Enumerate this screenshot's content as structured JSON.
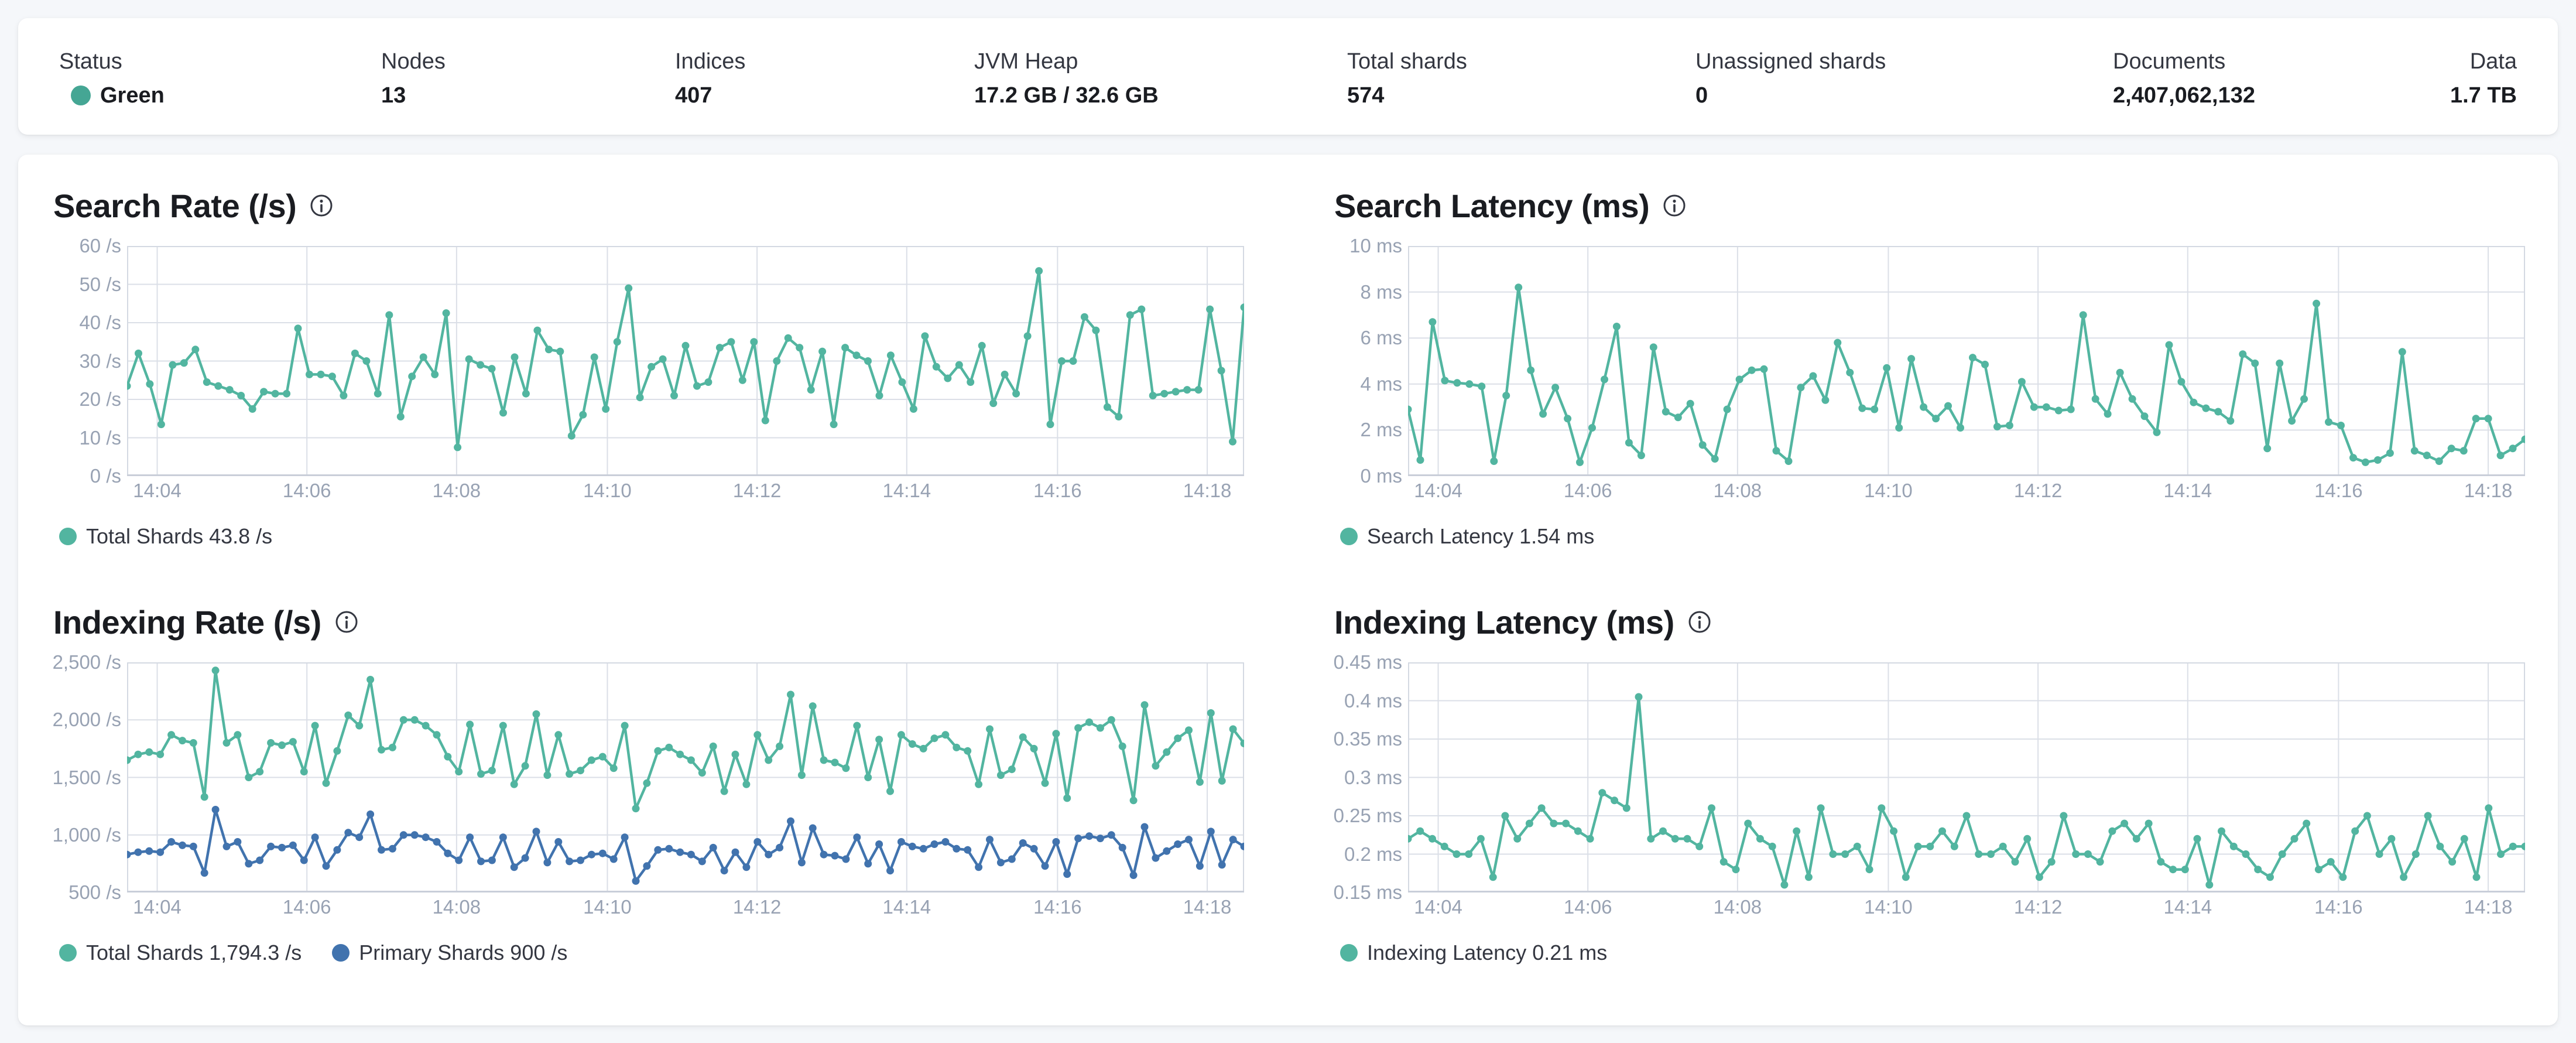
{
  "status_bar": {
    "items": [
      {
        "label": "Status",
        "value": "Green",
        "dot_color": "#45a694"
      },
      {
        "label": "Nodes",
        "value": "13"
      },
      {
        "label": "Indices",
        "value": "407"
      },
      {
        "label": "JVM Heap",
        "value": "17.2 GB / 32.6 GB"
      },
      {
        "label": "Total shards",
        "value": "574"
      },
      {
        "label": "Unassigned shards",
        "value": "0"
      },
      {
        "label": "Documents",
        "value": "2,407,062,132"
      },
      {
        "label": "Data",
        "value": "1.7 TB"
      }
    ]
  },
  "colors": {
    "teal": "#52b5a0",
    "blue": "#4173ae",
    "grid": "#dbdfe7",
    "border": "#d4d9e2",
    "axis_line": "#c9ced9",
    "tick_text": "#98a2b3"
  },
  "chart_data": [
    {
      "type": "line",
      "title": "Search Rate (/s)",
      "ylim": [
        0,
        60
      ],
      "y_ticks": [
        {
          "v": 60,
          "label": "60 /s"
        },
        {
          "v": 50,
          "label": "50 /s"
        },
        {
          "v": 40,
          "label": "40 /s"
        },
        {
          "v": 30,
          "label": "30 /s"
        },
        {
          "v": 20,
          "label": "20 /s"
        },
        {
          "v": 10,
          "label": "10 /s"
        },
        {
          "v": 0,
          "label": "0 /s"
        }
      ],
      "x_ticks": [
        {
          "f": 0.027,
          "label": "14:04"
        },
        {
          "f": 0.161,
          "label": "14:06"
        },
        {
          "f": 0.295,
          "label": "14:08"
        },
        {
          "f": 0.43,
          "label": "14:10"
        },
        {
          "f": 0.564,
          "label": "14:12"
        },
        {
          "f": 0.698,
          "label": "14:14"
        },
        {
          "f": 0.833,
          "label": "14:16"
        },
        {
          "f": 0.967,
          "label": "14:18"
        }
      ],
      "series": [
        {
          "name": "Total Shards",
          "legend": "Total Shards 43.8 /s",
          "color": "#52b5a0",
          "values": [
            23.5,
            32,
            24,
            13.5,
            29,
            29.5,
            33,
            24.5,
            23.5,
            22.5,
            21,
            17.5,
            22,
            21.5,
            21.5,
            38.5,
            26.5,
            26.5,
            26,
            21,
            32,
            30,
            21.5,
            42,
            15.5,
            26,
            31,
            26.5,
            42.5,
            7.5,
            30.5,
            29,
            28,
            16.5,
            31,
            21.5,
            38,
            33,
            32.5,
            10.5,
            16,
            31,
            17.5,
            35,
            49,
            20.5,
            28.5,
            30.5,
            21,
            34,
            23.5,
            24.5,
            33.5,
            35,
            25,
            35,
            14.5,
            30,
            36,
            33.5,
            22.5,
            32.5,
            13.5,
            33.5,
            31.5,
            30,
            21,
            31.5,
            24.5,
            17.5,
            36.5,
            28.5,
            25.5,
            29,
            24.5,
            34,
            19,
            26.5,
            21.5,
            36.5,
            53.5,
            13.5,
            30,
            30,
            41.5,
            38,
            18,
            15.5,
            42,
            43.5,
            21,
            21.5,
            22,
            22.5,
            22.5,
            43.5,
            27.5,
            9,
            44
          ]
        }
      ]
    },
    {
      "type": "line",
      "title": "Search Latency (ms)",
      "ylim": [
        0,
        10
      ],
      "y_ticks": [
        {
          "v": 10,
          "label": "10 ms"
        },
        {
          "v": 8,
          "label": "8 ms"
        },
        {
          "v": 6,
          "label": "6 ms"
        },
        {
          "v": 4,
          "label": "4 ms"
        },
        {
          "v": 2,
          "label": "2 ms"
        },
        {
          "v": 0,
          "label": "0 ms"
        }
      ],
      "x_ticks": [
        {
          "f": 0.027,
          "label": "14:04"
        },
        {
          "f": 0.161,
          "label": "14:06"
        },
        {
          "f": 0.295,
          "label": "14:08"
        },
        {
          "f": 0.43,
          "label": "14:10"
        },
        {
          "f": 0.564,
          "label": "14:12"
        },
        {
          "f": 0.698,
          "label": "14:14"
        },
        {
          "f": 0.833,
          "label": "14:16"
        },
        {
          "f": 0.967,
          "label": "14:18"
        }
      ],
      "series": [
        {
          "name": "Search Latency",
          "legend": "Search Latency 1.54 ms",
          "color": "#52b5a0",
          "values": [
            2.9,
            0.7,
            6.7,
            4.15,
            4.05,
            4.0,
            3.9,
            0.65,
            3.5,
            8.2,
            4.6,
            2.7,
            3.85,
            2.5,
            0.6,
            2.1,
            4.2,
            6.5,
            1.45,
            0.9,
            5.6,
            2.8,
            2.55,
            3.15,
            1.35,
            0.75,
            2.9,
            4.2,
            4.6,
            4.65,
            1.1,
            0.65,
            3.85,
            4.35,
            3.3,
            5.8,
            4.5,
            2.95,
            2.9,
            4.7,
            2.1,
            5.1,
            3.0,
            2.5,
            3.05,
            2.1,
            5.15,
            4.85,
            2.15,
            2.2,
            4.1,
            3.0,
            3.0,
            2.85,
            2.9,
            7.0,
            3.35,
            2.7,
            4.5,
            3.35,
            2.6,
            1.9,
            5.7,
            4.1,
            3.2,
            2.95,
            2.8,
            2.4,
            5.3,
            4.9,
            1.2,
            4.9,
            2.4,
            3.35,
            7.5,
            2.35,
            2.2,
            0.8,
            0.6,
            0.7,
            1.0,
            5.4,
            1.1,
            0.9,
            0.65,
            1.2,
            1.1,
            2.5,
            2.5,
            0.9,
            1.2,
            1.6
          ]
        }
      ]
    },
    {
      "type": "line",
      "title": "Indexing Rate (/s)",
      "ylim": [
        500,
        2500
      ],
      "y_ticks": [
        {
          "v": 2500,
          "label": "2,500 /s"
        },
        {
          "v": 2000,
          "label": "2,000 /s"
        },
        {
          "v": 1500,
          "label": "1,500 /s"
        },
        {
          "v": 1000,
          "label": "1,000 /s"
        },
        {
          "v": 500,
          "label": "500 /s"
        }
      ],
      "x_ticks": [
        {
          "f": 0.027,
          "label": "14:04"
        },
        {
          "f": 0.161,
          "label": "14:06"
        },
        {
          "f": 0.295,
          "label": "14:08"
        },
        {
          "f": 0.43,
          "label": "14:10"
        },
        {
          "f": 0.564,
          "label": "14:12"
        },
        {
          "f": 0.698,
          "label": "14:14"
        },
        {
          "f": 0.833,
          "label": "14:16"
        },
        {
          "f": 0.967,
          "label": "14:18"
        }
      ],
      "series": [
        {
          "name": "Total Shards",
          "legend": "Total Shards 1,794.3 /s",
          "color": "#52b5a0",
          "values": [
            1650,
            1700,
            1720,
            1700,
            1870,
            1820,
            1800,
            1330,
            2430,
            1800,
            1870,
            1500,
            1550,
            1800,
            1780,
            1810,
            1550,
            1950,
            1450,
            1730,
            2040,
            1950,
            2350,
            1740,
            1760,
            2000,
            2000,
            1950,
            1870,
            1680,
            1550,
            1960,
            1530,
            1560,
            1950,
            1440,
            1600,
            2050,
            1520,
            1870,
            1530,
            1560,
            1650,
            1680,
            1580,
            1950,
            1230,
            1450,
            1730,
            1760,
            1700,
            1650,
            1540,
            1770,
            1380,
            1700,
            1440,
            1870,
            1650,
            1770,
            2220,
            1520,
            2120,
            1650,
            1630,
            1580,
            1950,
            1500,
            1830,
            1380,
            1870,
            1790,
            1750,
            1840,
            1870,
            1760,
            1730,
            1440,
            1920,
            1520,
            1570,
            1850,
            1750,
            1450,
            1880,
            1320,
            1930,
            1980,
            1930,
            2000,
            1770,
            1300,
            2130,
            1600,
            1720,
            1840,
            1910,
            1460,
            2060,
            1470,
            1920,
            1795
          ]
        },
        {
          "name": "Primary Shards",
          "legend": "Primary Shards 900 /s",
          "color": "#4173ae",
          "values": [
            830,
            850,
            860,
            850,
            940,
            910,
            900,
            670,
            1220,
            900,
            940,
            750,
            780,
            900,
            890,
            910,
            780,
            980,
            730,
            870,
            1020,
            980,
            1180,
            870,
            880,
            1000,
            1000,
            980,
            940,
            840,
            780,
            980,
            770,
            780,
            980,
            720,
            800,
            1030,
            760,
            940,
            770,
            780,
            830,
            840,
            790,
            980,
            600,
            730,
            870,
            880,
            850,
            830,
            770,
            890,
            690,
            850,
            720,
            940,
            830,
            890,
            1120,
            760,
            1060,
            830,
            820,
            790,
            980,
            750,
            920,
            690,
            940,
            900,
            880,
            920,
            940,
            880,
            870,
            720,
            960,
            760,
            790,
            930,
            880,
            730,
            940,
            660,
            970,
            990,
            970,
            1000,
            890,
            650,
            1070,
            800,
            860,
            920,
            960,
            730,
            1030,
            740,
            960,
            900
          ]
        }
      ]
    },
    {
      "type": "line",
      "title": "Indexing Latency (ms)",
      "ylim": [
        0.15,
        0.45
      ],
      "y_ticks": [
        {
          "v": 0.45,
          "label": "0.45 ms"
        },
        {
          "v": 0.4,
          "label": "0.4 ms"
        },
        {
          "v": 0.35,
          "label": "0.35 ms"
        },
        {
          "v": 0.3,
          "label": "0.3 ms"
        },
        {
          "v": 0.25,
          "label": "0.25 ms"
        },
        {
          "v": 0.2,
          "label": "0.2 ms"
        },
        {
          "v": 0.15,
          "label": "0.15 ms"
        }
      ],
      "x_ticks": [
        {
          "f": 0.027,
          "label": "14:04"
        },
        {
          "f": 0.161,
          "label": "14:06"
        },
        {
          "f": 0.295,
          "label": "14:08"
        },
        {
          "f": 0.43,
          "label": "14:10"
        },
        {
          "f": 0.564,
          "label": "14:12"
        },
        {
          "f": 0.698,
          "label": "14:14"
        },
        {
          "f": 0.833,
          "label": "14:16"
        },
        {
          "f": 0.967,
          "label": "14:18"
        }
      ],
      "series": [
        {
          "name": "Indexing Latency",
          "legend": "Indexing Latency 0.21 ms",
          "color": "#52b5a0",
          "values": [
            0.22,
            0.23,
            0.22,
            0.21,
            0.2,
            0.2,
            0.22,
            0.17,
            0.25,
            0.22,
            0.24,
            0.26,
            0.24,
            0.24,
            0.23,
            0.22,
            0.28,
            0.27,
            0.26,
            0.405,
            0.22,
            0.23,
            0.22,
            0.22,
            0.21,
            0.26,
            0.19,
            0.18,
            0.24,
            0.22,
            0.21,
            0.16,
            0.23,
            0.17,
            0.26,
            0.2,
            0.2,
            0.21,
            0.18,
            0.26,
            0.23,
            0.17,
            0.21,
            0.21,
            0.23,
            0.21,
            0.25,
            0.2,
            0.2,
            0.21,
            0.19,
            0.22,
            0.17,
            0.19,
            0.25,
            0.2,
            0.2,
            0.19,
            0.23,
            0.24,
            0.22,
            0.24,
            0.19,
            0.18,
            0.18,
            0.22,
            0.16,
            0.23,
            0.21,
            0.2,
            0.18,
            0.17,
            0.2,
            0.22,
            0.24,
            0.18,
            0.19,
            0.17,
            0.23,
            0.25,
            0.2,
            0.22,
            0.17,
            0.2,
            0.25,
            0.21,
            0.19,
            0.22,
            0.17,
            0.26,
            0.2,
            0.21,
            0.21
          ]
        }
      ]
    }
  ]
}
